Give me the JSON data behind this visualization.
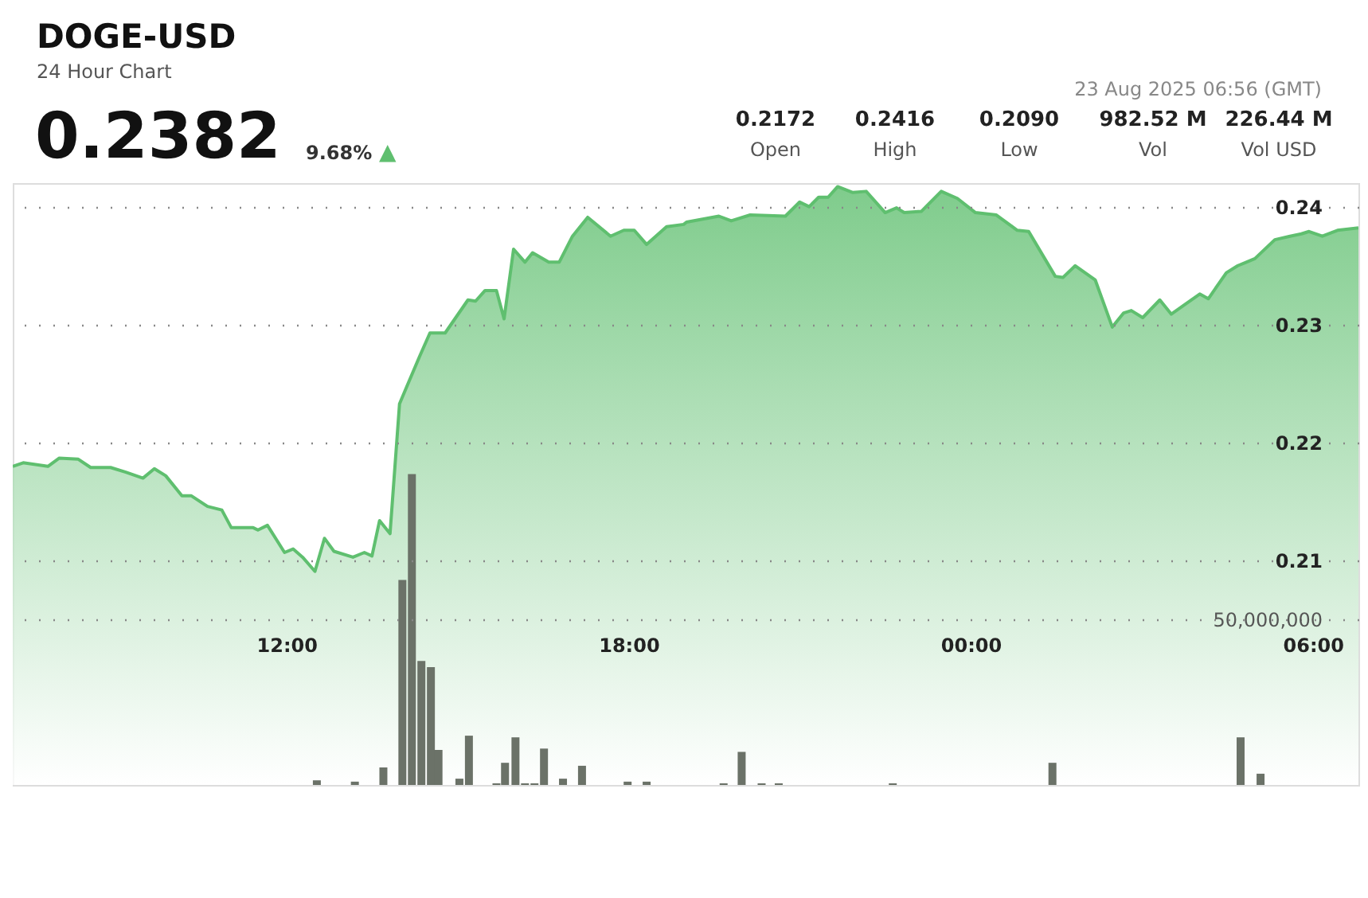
{
  "chart_data": {
    "type": "area",
    "title": "DOGE-USD",
    "subtitle": "24 Hour Chart",
    "annotations": [
      "0.2382",
      "9.68%",
      "▲",
      "0.2172",
      "Open",
      "0.2416",
      "High",
      "0.2090",
      "Low",
      "982.52 M",
      "Vol",
      "226.44 M",
      "Vol USD",
      "23 Aug 2025 06:56 (GMT)"
    ],
    "xlim": [
      "2025-08-22T07:12",
      "2025-08-23T06:48"
    ],
    "xticks": [
      {
        "value": "2025-08-22T12:00",
        "label": "12:00"
      },
      {
        "value": "2025-08-22T18:00",
        "label": "18:00"
      },
      {
        "value": "2025-08-23T00:00",
        "label": "00:00"
      },
      {
        "value": "2025-08-23T06:00",
        "label": "06:00"
      }
    ],
    "ylim": [
      0.191,
      0.242
    ],
    "yticks": [
      0.21,
      0.22,
      0.23,
      0.24
    ],
    "y2lim": [
      0,
      182000000
    ],
    "y2ticks": [
      {
        "value": 50000000,
        "label": "50,000,000"
      }
    ],
    "grid": "y",
    "series": [
      {
        "color": "#5fbf6f",
        "x": [
          "2025-08-22T07:12",
          "2025-08-22T07:23",
          "2025-08-22T07:49",
          "2025-08-22T08:01",
          "2025-08-22T08:21",
          "2025-08-22T08:34",
          "2025-08-22T08:55",
          "2025-08-22T09:11",
          "2025-08-22T09:29",
          "2025-08-22T09:41",
          "2025-08-22T09:53",
          "2025-08-22T10:10",
          "2025-08-22T10:20",
          "2025-08-22T10:37",
          "2025-08-22T10:52",
          "2025-08-22T11:02",
          "2025-08-22T11:25",
          "2025-08-22T11:30",
          "2025-08-22T11:40",
          "2025-08-22T11:58",
          "2025-08-22T12:07",
          "2025-08-22T12:17",
          "2025-08-22T12:30",
          "2025-08-22T12:40",
          "2025-08-22T12:50",
          "2025-08-22T13:10",
          "2025-08-22T13:22",
          "2025-08-22T13:30",
          "2025-08-22T13:38",
          "2025-08-22T13:49",
          "2025-08-22T13:59",
          "2025-08-22T14:20",
          "2025-08-22T14:31",
          "2025-08-22T14:47",
          "2025-08-22T15:11",
          "2025-08-22T15:19",
          "2025-08-22T15:29",
          "2025-08-22T15:41",
          "2025-08-22T15:49",
          "2025-08-22T15:59",
          "2025-08-22T16:11",
          "2025-08-22T16:19",
          "2025-08-22T16:36",
          "2025-08-22T16:47",
          "2025-08-22T17:01",
          "2025-08-22T17:17",
          "2025-08-22T17:41",
          "2025-08-22T17:55",
          "2025-08-22T18:06",
          "2025-08-22T18:19",
          "2025-08-22T18:40",
          "2025-08-22T18:58",
          "2025-08-22T19:01",
          "2025-08-22T19:35",
          "2025-08-22T19:48",
          "2025-08-22T20:08",
          "2025-08-22T20:45",
          "2025-08-22T21:00",
          "2025-08-22T21:10",
          "2025-08-22T21:20",
          "2025-08-22T21:30",
          "2025-08-22T21:40",
          "2025-08-22T21:56",
          "2025-08-22T22:10",
          "2025-08-22T22:30",
          "2025-08-22T22:42",
          "2025-08-22T22:50",
          "2025-08-22T23:08",
          "2025-08-22T23:29",
          "2025-08-22T23:46",
          "2025-08-23T00:05",
          "2025-08-23T00:27",
          "2025-08-23T00:49",
          "2025-08-23T01:01",
          "2025-08-23T01:29",
          "2025-08-23T01:37",
          "2025-08-23T01:50",
          "2025-08-23T02:11",
          "2025-08-23T02:29",
          "2025-08-23T02:41",
          "2025-08-23T02:49",
          "2025-08-23T03:01",
          "2025-08-23T03:19",
          "2025-08-23T03:31",
          "2025-08-23T03:47",
          "2025-08-23T04:01",
          "2025-08-23T04:10",
          "2025-08-23T04:29",
          "2025-08-23T04:41",
          "2025-08-23T04:50",
          "2025-08-23T04:59",
          "2025-08-23T05:20",
          "2025-08-23T05:36",
          "2025-08-23T05:48",
          "2025-08-23T05:56",
          "2025-08-23T06:10",
          "2025-08-23T06:26",
          "2025-08-23T06:48"
        ],
        "values": [
          0.218,
          0.2183,
          0.218,
          0.2187,
          0.2186,
          0.2179,
          0.2179,
          0.2175,
          0.217,
          0.2178,
          0.2172,
          0.2155,
          0.2155,
          0.2146,
          0.2143,
          0.2128,
          0.2128,
          0.2126,
          0.213,
          0.2107,
          0.211,
          0.2103,
          0.2091,
          0.2119,
          0.2108,
          0.2103,
          0.2107,
          0.2104,
          0.2134,
          0.2123,
          0.2233,
          0.2273,
          0.2293,
          0.2293,
          0.2321,
          0.232,
          0.2329,
          0.2329,
          0.2305,
          0.2364,
          0.2353,
          0.2361,
          0.2353,
          0.2353,
          0.2375,
          0.2391,
          0.2375,
          0.238,
          0.238,
          0.2368,
          0.2383,
          0.2385,
          0.2387,
          0.2392,
          0.2388,
          0.2393,
          0.2392,
          0.2404,
          0.24,
          0.2408,
          0.2408,
          0.2417,
          0.2412,
          0.2413,
          0.2395,
          0.2399,
          0.2395,
          0.2396,
          0.2413,
          0.2407,
          0.2395,
          0.2393,
          0.238,
          0.2379,
          0.2341,
          0.234,
          0.235,
          0.2338,
          0.2298,
          0.231,
          0.2312,
          0.2306,
          0.2321,
          0.2309,
          0.2318,
          0.2326,
          0.2322,
          0.2344,
          0.235,
          0.2353,
          0.2356,
          0.2372,
          0.2375,
          0.2377,
          0.2379,
          0.2375,
          0.238,
          0.2382
        ]
      },
      {
        "type": "bar",
        "axis": "y2",
        "color": "#6b7268",
        "x": [
          "2025-08-22T12:32",
          "2025-08-22T13:12",
          "2025-08-22T13:42",
          "2025-08-22T14:02",
          "2025-08-22T14:12",
          "2025-08-22T14:22",
          "2025-08-22T14:32",
          "2025-08-22T14:40",
          "2025-08-22T15:02",
          "2025-08-22T15:12",
          "2025-08-22T15:41",
          "2025-08-22T15:50",
          "2025-08-22T16:01",
          "2025-08-22T16:11",
          "2025-08-22T16:21",
          "2025-08-22T16:31",
          "2025-08-22T16:51",
          "2025-08-22T17:11",
          "2025-08-22T17:59",
          "2025-08-22T18:19",
          "2025-08-22T19:40",
          "2025-08-22T19:59",
          "2025-08-22T20:20",
          "2025-08-22T20:38",
          "2025-08-22T22:38",
          "2025-08-23T01:26",
          "2025-08-23T04:44",
          "2025-08-23T05:05"
        ],
        "values": [
          1400000,
          1000000,
          5300000,
          62000000,
          94000000,
          37500000,
          35600000,
          10600000,
          1900000,
          14900000,
          500000,
          6700000,
          14400000,
          500000,
          500000,
          11000000,
          1900000,
          5800000,
          1000000,
          1000000,
          500000,
          10000000,
          500000,
          500000,
          500000,
          6700000,
          14400000,
          3400000
        ]
      }
    ]
  }
}
